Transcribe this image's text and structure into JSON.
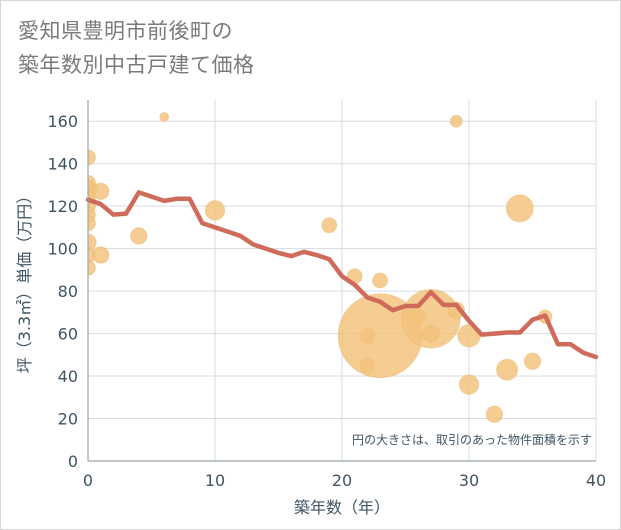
{
  "chart_data": {
    "type": "scatter",
    "title_lines": [
      "愛知県豊明市前後町の",
      "築年数別中古戸建て価格"
    ],
    "xlabel": "築年数（年）",
    "ylabel": "坪（3.3㎡）単価（万円）",
    "xlim": [
      0,
      40
    ],
    "ylim": [
      0,
      170
    ],
    "x_ticks": [
      0,
      10,
      20,
      30,
      40
    ],
    "y_ticks": [
      0,
      20,
      40,
      60,
      80,
      100,
      120,
      140,
      160
    ],
    "grid": true,
    "annotation": "円の大きさは、取引のあった物件面積を示す",
    "colors": {
      "bubble": "#f3c27a",
      "bubble_edge": "#eab062",
      "line": "#cf6b5a",
      "grid": "#d5dde3",
      "axis": "#9aa6ad"
    },
    "bubbles": [
      {
        "x": 0,
        "y": 143,
        "size": 1
      },
      {
        "x": 0,
        "y": 131,
        "size": 1
      },
      {
        "x": 0,
        "y": 128,
        "size": 1.2
      },
      {
        "x": 0,
        "y": 124,
        "size": 1
      },
      {
        "x": 0,
        "y": 120,
        "size": 1
      },
      {
        "x": 0,
        "y": 116,
        "size": 1
      },
      {
        "x": 0,
        "y": 112,
        "size": 1
      },
      {
        "x": 0,
        "y": 103,
        "size": 1.1
      },
      {
        "x": 0,
        "y": 97,
        "size": 1
      },
      {
        "x": 0,
        "y": 91,
        "size": 1
      },
      {
        "x": 1,
        "y": 127,
        "size": 1.1
      },
      {
        "x": 1,
        "y": 97,
        "size": 1.1
      },
      {
        "x": 4,
        "y": 106,
        "size": 1.1
      },
      {
        "x": 6,
        "y": 162,
        "size": 0.6
      },
      {
        "x": 10,
        "y": 118,
        "size": 1.3
      },
      {
        "x": 19,
        "y": 111,
        "size": 1
      },
      {
        "x": 21,
        "y": 87,
        "size": 1
      },
      {
        "x": 22,
        "y": 59,
        "size": 1
      },
      {
        "x": 22,
        "y": 45,
        "size": 1
      },
      {
        "x": 23,
        "y": 59,
        "size": 5.6
      },
      {
        "x": 23,
        "y": 85,
        "size": 1
      },
      {
        "x": 26,
        "y": 68,
        "size": 1
      },
      {
        "x": 27,
        "y": 67,
        "size": 3.9
      },
      {
        "x": 27,
        "y": 60,
        "size": 1.1
      },
      {
        "x": 29,
        "y": 160,
        "size": 0.8
      },
      {
        "x": 29,
        "y": 71,
        "size": 1.1
      },
      {
        "x": 30,
        "y": 59,
        "size": 1.5
      },
      {
        "x": 30,
        "y": 36,
        "size": 1.3
      },
      {
        "x": 32,
        "y": 22,
        "size": 1.1
      },
      {
        "x": 33,
        "y": 43,
        "size": 1.4
      },
      {
        "x": 34,
        "y": 119,
        "size": 1.8
      },
      {
        "x": 35,
        "y": 47,
        "size": 1.1
      },
      {
        "x": 36,
        "y": 68,
        "size": 0.9
      }
    ],
    "series": [
      {
        "name": "平均坪単価",
        "x": [
          0,
          1,
          2,
          3,
          4,
          5,
          6,
          7,
          8,
          9,
          10,
          11,
          12,
          13,
          14,
          15,
          16,
          17,
          18,
          19,
          20,
          21,
          22,
          23,
          24,
          25,
          26,
          27,
          28,
          29,
          30,
          31,
          32,
          33,
          34,
          35,
          36,
          37,
          38,
          39,
          40
        ],
        "values": [
          123,
          121,
          116,
          116.5,
          126.5,
          124.5,
          122.5,
          123.5,
          123.5,
          112,
          110,
          108,
          106,
          102,
          100,
          98,
          96.5,
          98.5,
          97,
          95,
          87,
          83,
          77,
          75,
          71,
          73,
          73,
          79.5,
          73.5,
          73.5,
          66,
          59.5,
          60,
          60.5,
          60.5,
          66.5,
          68.5,
          55,
          55,
          51,
          49
        ]
      }
    ]
  }
}
